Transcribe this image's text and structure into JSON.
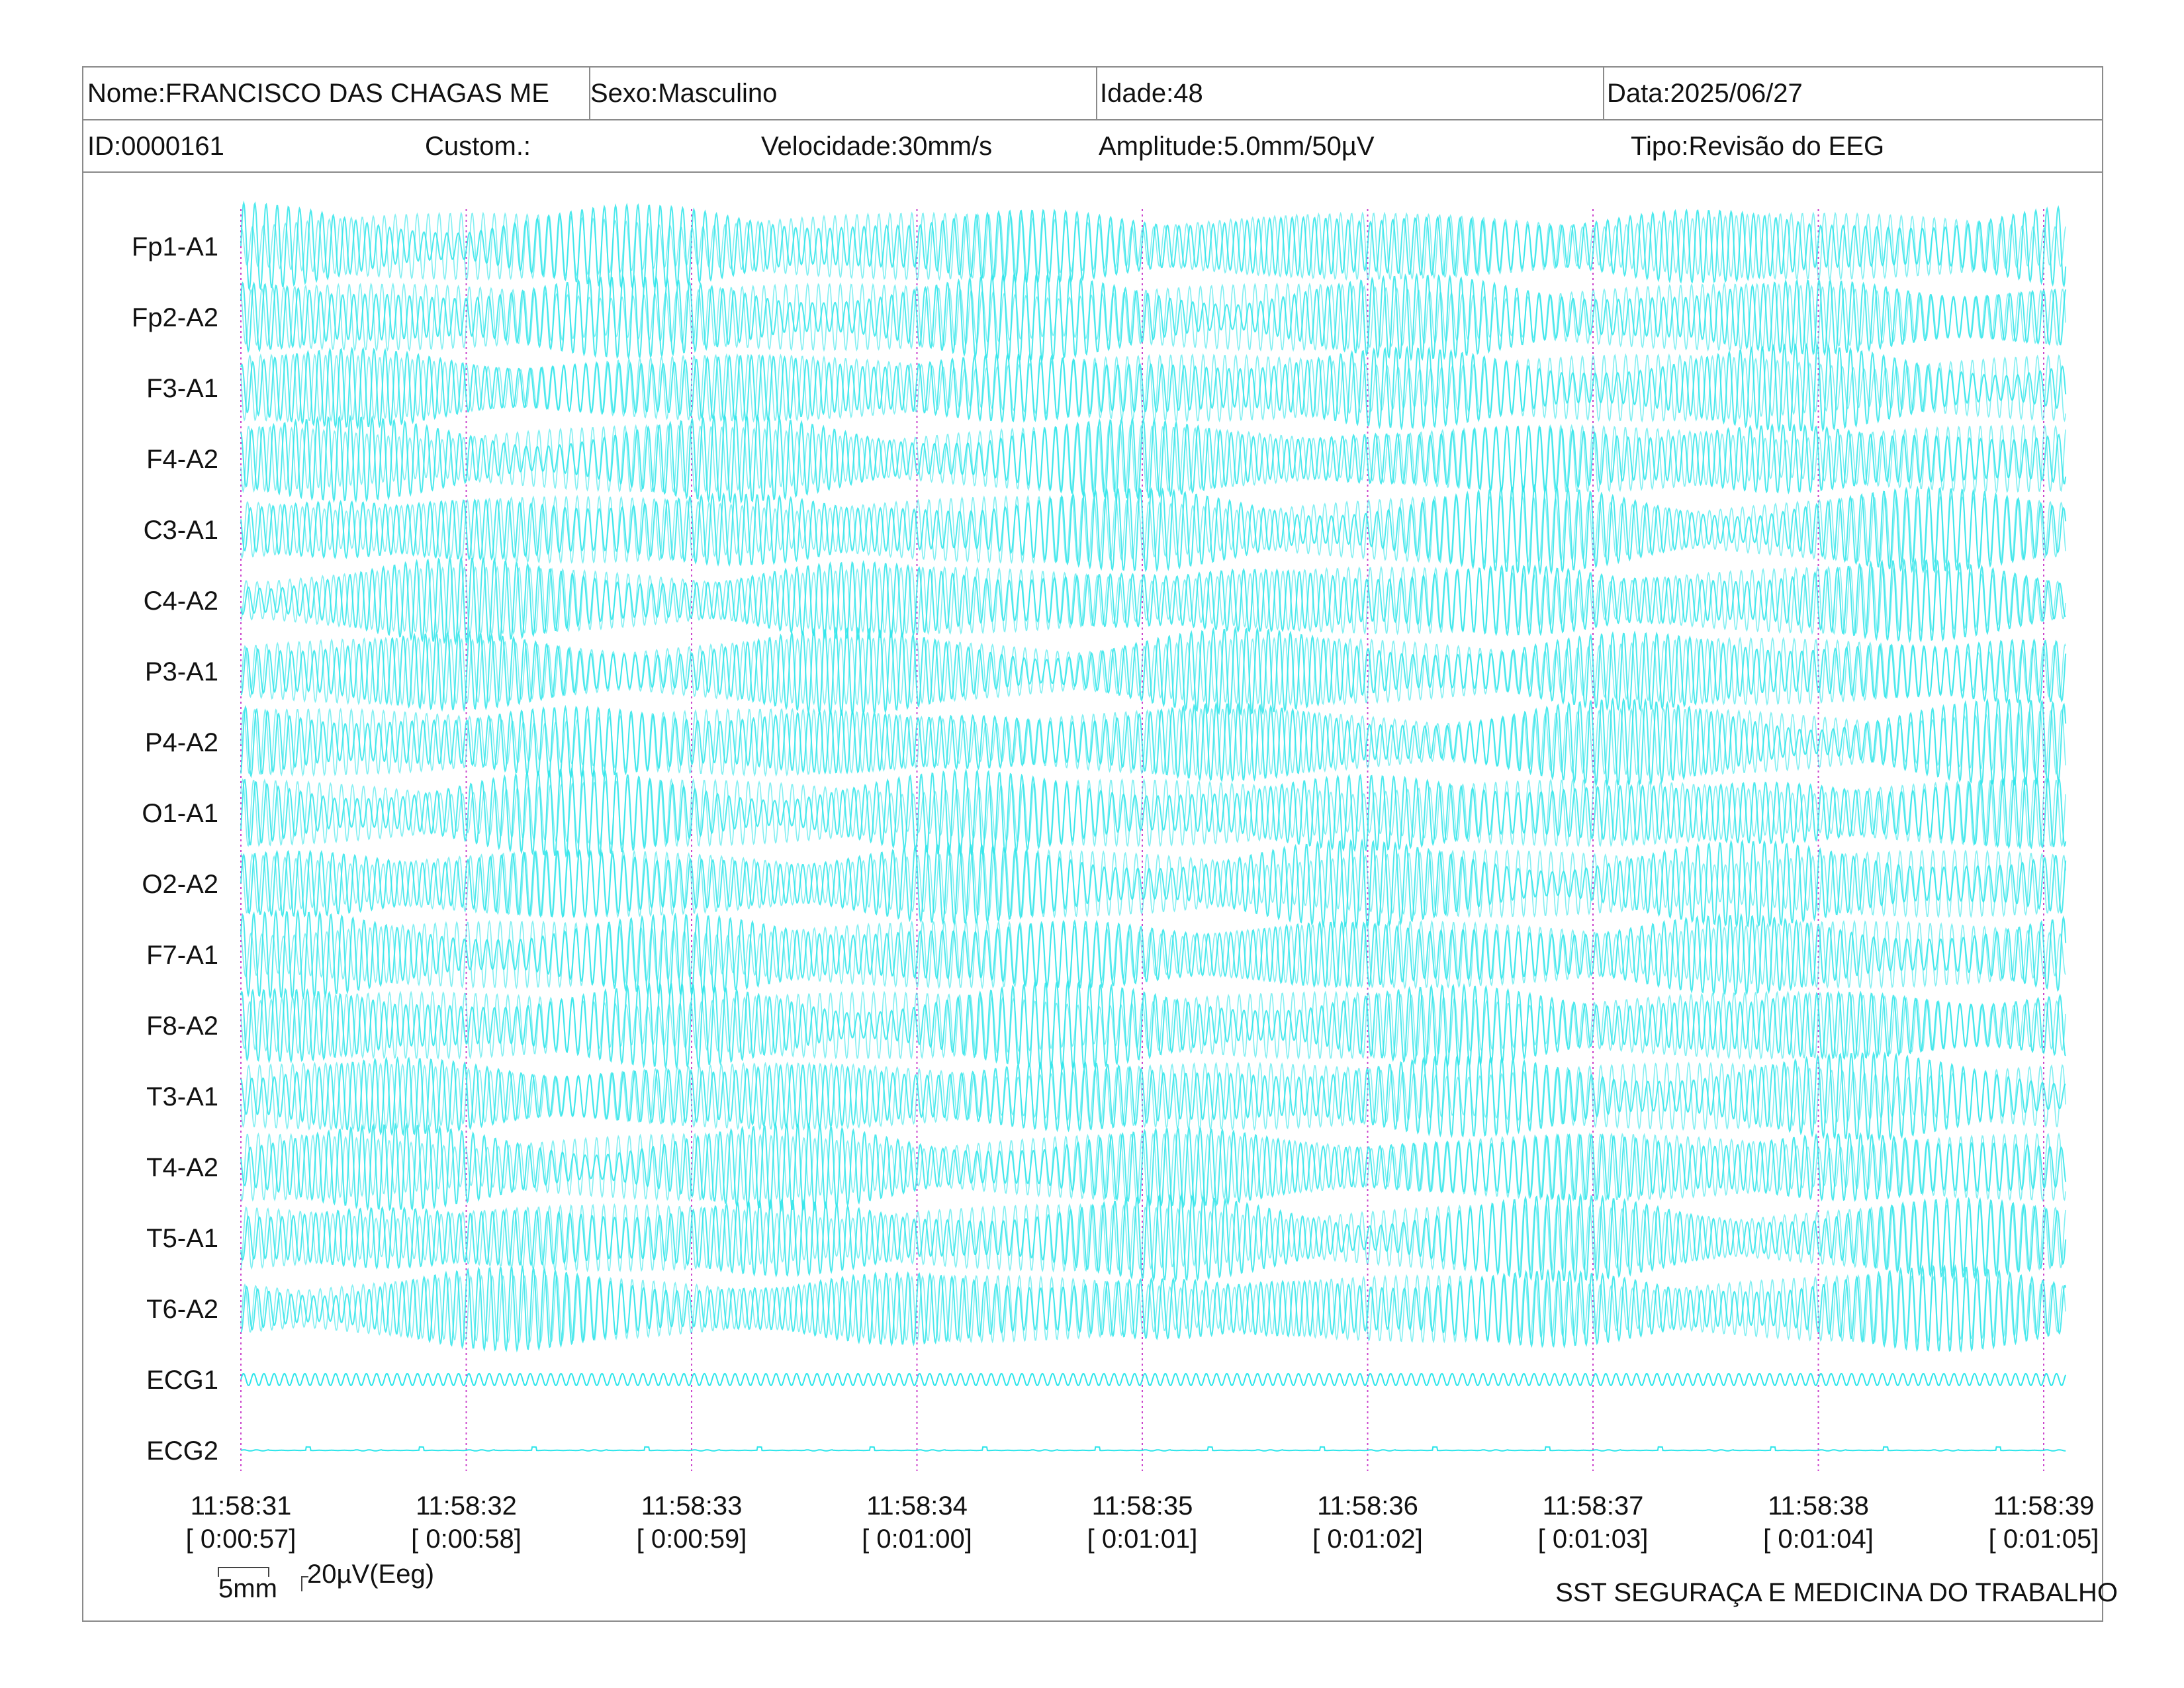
{
  "header": {
    "name": "Nome:FRANCISCO DAS CHAGAS ME",
    "sex": "Sexo:Masculino",
    "age": "Idade:48",
    "date": "Data:2025/06/27",
    "id": "ID:0000161",
    "custom": "Custom.:",
    "speed": "Velocidade:30mm/s",
    "amplitude": "Amplitude:5.0mm/50µV",
    "type": "Tipo:Revisão do EEG"
  },
  "scale": {
    "time_label": "5mm",
    "amp_label": "20µV(Eeg)"
  },
  "footer": {
    "organization": "SST SEGURAÇA E MEDICINA DO TRABALHO"
  },
  "colors": {
    "trace": "#2ee5ea",
    "trace_fill": "#a9f4f6",
    "marker": "#cc44cc",
    "border": "#8a8a8a"
  },
  "chart_data": {
    "type": "line",
    "channels": [
      "Fp1-A1",
      "Fp2-A2",
      "F3-A1",
      "F4-A2",
      "C3-A1",
      "C4-A2",
      "P3-A1",
      "P4-A2",
      "O1-A1",
      "O2-A2",
      "F7-A1",
      "F8-A2",
      "T3-A1",
      "T4-A2",
      "T5-A1",
      "T6-A2",
      "ECG1",
      "ECG2"
    ],
    "time_ticks": [
      "11:58:31",
      "11:58:32",
      "11:58:33",
      "11:58:34",
      "11:58:35",
      "11:58:36",
      "11:58:37",
      "11:58:38",
      "11:58:39"
    ],
    "elapsed_ticks": [
      "[ 0:00:57]",
      "[ 0:00:58]",
      "[ 0:00:59]",
      "[ 0:01:00]",
      "[ 0:01:01]",
      "[ 0:01:02]",
      "[ 0:01:03]",
      "[ 0:01:04]",
      "[ 0:01:05]"
    ],
    "duration_s": 8.1,
    "eeg_freq_hz": 20,
    "eeg_beat_hz": 0.5,
    "ecg1_freq_hz": 22,
    "ecg2_rate_bpm": 60,
    "grid": false,
    "vertical_markers": "dashed at each second"
  }
}
